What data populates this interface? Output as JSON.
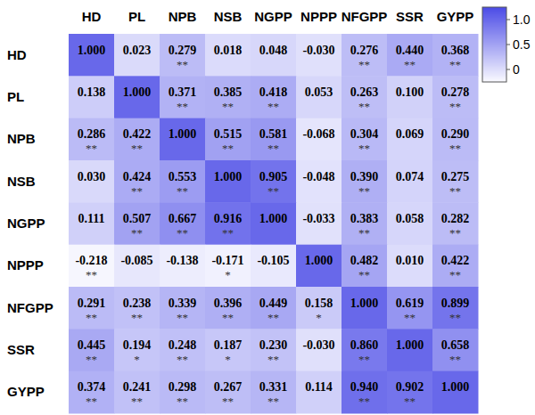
{
  "chart_data": {
    "type": "heatmap",
    "x_categories": [
      "HD",
      "PL",
      "NPB",
      "NSB",
      "NGPP",
      "NPPP",
      "NFGPP",
      "SSR",
      "GYPP"
    ],
    "y_categories": [
      "HD",
      "PL",
      "NPB",
      "NSB",
      "NGPP",
      "NPPP",
      "NFGPP",
      "SSR",
      "GYPP"
    ],
    "cells": [
      [
        1.0,
        0.023,
        0.279,
        0.018,
        0.048,
        -0.03,
        0.276,
        0.44,
        0.368
      ],
      [
        0.138,
        1.0,
        0.371,
        0.385,
        0.418,
        0.053,
        0.263,
        0.1,
        0.278
      ],
      [
        0.286,
        0.422,
        1.0,
        0.515,
        0.581,
        -0.068,
        0.304,
        0.069,
        0.29
      ],
      [
        0.03,
        0.424,
        0.553,
        1.0,
        0.905,
        -0.048,
        0.39,
        0.074,
        0.275
      ],
      [
        0.111,
        0.507,
        0.667,
        0.916,
        1.0,
        -0.033,
        0.383,
        0.058,
        0.282
      ],
      [
        -0.218,
        -0.085,
        -0.138,
        -0.171,
        -0.105,
        1.0,
        0.482,
        0.01,
        0.422
      ],
      [
        0.291,
        0.238,
        0.339,
        0.396,
        0.449,
        0.158,
        1.0,
        0.619,
        0.899
      ],
      [
        0.445,
        0.194,
        0.248,
        0.187,
        0.23,
        -0.03,
        0.86,
        1.0,
        0.658
      ],
      [
        0.374,
        0.241,
        0.298,
        0.267,
        0.331,
        0.114,
        0.94,
        0.902,
        1.0
      ]
    ],
    "value_labels": [
      [
        "1.000",
        "0.023",
        "0.279",
        "0.018",
        "0.048",
        "-0.030",
        "0.276",
        "0.440",
        "0.368"
      ],
      [
        "0.138",
        "1.000",
        "0.371",
        "0.385",
        "0.418",
        "0.053",
        "0.263",
        "0.100",
        "0.278"
      ],
      [
        "0.286",
        "0.422",
        "1.000",
        "0.515",
        "0.581",
        "-0.068",
        "0.304",
        "0.069",
        "0.290"
      ],
      [
        "0.030",
        "0.424",
        "0.553",
        "1.000",
        "0.905",
        "-0.048",
        "0.390",
        "0.074",
        "0.275"
      ],
      [
        "0.111",
        "0.507",
        "0.667",
        "0.916",
        "1.000",
        "-0.033",
        "0.383",
        "0.058",
        "0.282"
      ],
      [
        "-0.218",
        "-0.085",
        "-0.138",
        "-0.171",
        "-0.105",
        "1.000",
        "0.482",
        "0.010",
        "0.422"
      ],
      [
        "0.291",
        "0.238",
        "0.339",
        "0.396",
        "0.449",
        "0.158",
        "1.000",
        "0.619",
        "0.899"
      ],
      [
        "0.445",
        "0.194",
        "0.248",
        "0.187",
        "0.230",
        "-0.030",
        "0.860",
        "1.000",
        "0.658"
      ],
      [
        "0.374",
        "0.241",
        "0.298",
        "0.267",
        "0.331",
        "0.114",
        "0.940",
        "0.902",
        "1.000"
      ]
    ],
    "significance": [
      [
        null,
        null,
        "**",
        null,
        null,
        null,
        "**",
        "**",
        "**"
      ],
      [
        null,
        null,
        "**",
        "**",
        "**",
        null,
        "**",
        null,
        "**"
      ],
      [
        "**",
        "**",
        null,
        "**",
        "**",
        null,
        "**",
        null,
        "**"
      ],
      [
        null,
        "**",
        "**",
        null,
        "**",
        null,
        "**",
        null,
        "**"
      ],
      [
        null,
        "**",
        "**",
        "**",
        null,
        null,
        "**",
        null,
        "**"
      ],
      [
        "**",
        null,
        null,
        "*",
        null,
        null,
        "**",
        null,
        "**"
      ],
      [
        "**",
        "**",
        "**",
        "**",
        "**",
        "*",
        null,
        "**",
        "**"
      ],
      [
        "**",
        "*",
        "**",
        "*",
        "**",
        null,
        "**",
        null,
        "**"
      ],
      [
        "**",
        "**",
        "**",
        "**",
        "**",
        null,
        "**",
        "**",
        null
      ]
    ],
    "colorbar_range": [
      -0.25,
      1.25
    ],
    "colorbar_ticks": [
      {
        "value": 1,
        "label": "1.0"
      },
      0.5,
      0
    ],
    "color": "#4b4be6"
  }
}
